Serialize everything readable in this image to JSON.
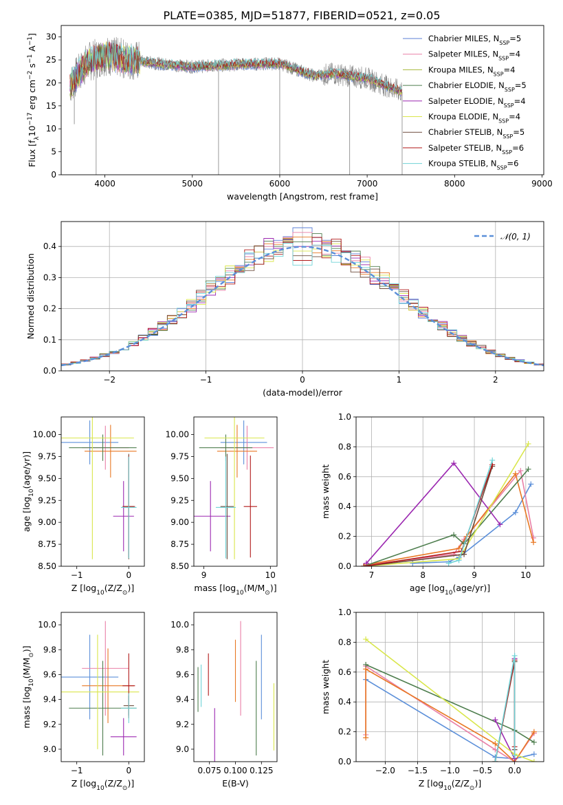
{
  "figure": {
    "title": "PLATE=0385, MJD=51877, FIBERID=0521, z=0.05"
  },
  "colors": {
    "Chabrier MILES": "#5b7fd6",
    "Salpeter MILES": "#e97fa6",
    "Kroupa MILES": "#a6b83a",
    "Chabrier ELODIE": "#4d7d4d",
    "Salpeter ELODIE": "#9b27b0",
    "Kroupa ELODIE": "#d9e64a",
    "Chabrier STELIB": "#6b4a3a",
    "Salpeter STELIB": "#b01818",
    "Kroupa STELIB": "#6fd3d6",
    "data": "#808080",
    "normal": "#5b8fd9",
    "panel_c": [
      "#5b8fd9",
      "#e97fa6",
      "#e87722",
      "#4d7d4d",
      "#9b27b0",
      "#d9e64a",
      "#6b4a3a",
      "#b01818",
      "#6fd3d6"
    ]
  },
  "chart_data": [
    {
      "id": "spectrum",
      "type": "line",
      "xlabel": "wavelength [Angstrom, rest frame]",
      "ylabel_html": "Flux [f<tspan baseline-shift='sub' font-size='9'>λ</tspan>10<tspan baseline-shift='super' font-size='9'>−17</tspan> erg cm<tspan baseline-shift='super' font-size='9'>−2</tspan> s<tspan baseline-shift='super' font-size='9'>−1</tspan> A<tspan baseline-shift='super' font-size='9'>−1</tspan>]",
      "xlim": [
        3500,
        9020
      ],
      "ylim": [
        0,
        32.5
      ],
      "xticks": [
        4000,
        5000,
        6000,
        7000,
        8000,
        9000
      ],
      "yticks": [
        0,
        5,
        10,
        15,
        20,
        25,
        30
      ],
      "grid": false,
      "legend_position": "right",
      "legend": [
        {
          "name": "Chabrier MILES",
          "sub": "SSP",
          "n": "5"
        },
        {
          "name": "Salpeter MILES",
          "sub": "SSP",
          "n": "4"
        },
        {
          "name": "Kroupa MILES",
          "sub": "SSP",
          "n": "4"
        },
        {
          "name": "Chabrier ELODIE",
          "sub": "SSP",
          "n": "5"
        },
        {
          "name": "Salpeter ELODIE",
          "sub": "SSP",
          "n": "4"
        },
        {
          "name": "Kroupa ELODIE",
          "sub": "SSP",
          "n": "4"
        },
        {
          "name": "Chabrier STELIB",
          "sub": "SSP",
          "n": "5"
        },
        {
          "name": "Salpeter STELIB",
          "sub": "SSP",
          "n": "6"
        },
        {
          "name": "Kroupa STELIB",
          "sub": "SSP",
          "n": "6"
        }
      ],
      "continuum": {
        "x": [
          3600,
          3800,
          4000,
          4300,
          4600,
          5000,
          5500,
          6000,
          6400,
          6600,
          7000,
          7400
        ],
        "y": [
          19.5,
          24.5,
          26.0,
          25.0,
          24.2,
          23.5,
          24.0,
          24.2,
          21.5,
          22.0,
          21.0,
          18.0
        ]
      },
      "spikes_down": [
        [
          3900,
          0
        ],
        [
          5300,
          0
        ],
        [
          6000,
          0
        ],
        [
          6800,
          0
        ],
        [
          7400,
          0
        ],
        [
          3650,
          11
        ]
      ],
      "model_extent": {
        "start": 3600,
        "end": 7400
      },
      "data_extent": {
        "start": 3600,
        "end": 7400
      }
    },
    {
      "id": "residuals",
      "type": "histogram",
      "xlabel": "(data-model)/error",
      "ylabel": "Normed distribution",
      "xlim": [
        -2.5,
        2.5
      ],
      "ylim": [
        0,
        0.48
      ],
      "xticks": [
        -2,
        -1,
        0,
        1,
        2
      ],
      "yticks": [
        0.0,
        0.1,
        0.2,
        0.3,
        0.4
      ],
      "grid": true,
      "legend_position": "top-right",
      "legend": [
        {
          "name": "𝒩(0, 1)"
        }
      ],
      "bin_width": 0.1,
      "peak_value": 0.46,
      "series_count": 9
    },
    {
      "id": "age_vs_Z",
      "type": "errorbar",
      "xlabel_html": "Z [log<tspan baseline-shift='sub' font-size='9'>10</tspan>(Z/Z<tspan baseline-shift='sub' font-size='9'>⊙</tspan>)]",
      "ylabel_html": "age  [log<tspan baseline-shift='sub' font-size='9'>10</tspan>(age/yr)]",
      "xlim": [
        -1.3,
        0.3
      ],
      "ylim": [
        8.5,
        10.2
      ],
      "xticks": [
        -1,
        0
      ],
      "yticks": [
        8.5,
        8.75,
        9.0,
        9.25,
        9.5,
        9.75,
        10.0
      ],
      "points": [
        {
          "x": -0.75,
          "xerr": 0.55,
          "y": 9.91,
          "yerr": 0.25,
          "c": 0
        },
        {
          "x": -0.45,
          "xerr": 0.45,
          "y": 9.85,
          "yerr": 0.25,
          "c": 1
        },
        {
          "x": -0.35,
          "xerr": 0.5,
          "y": 9.81,
          "yerr": 0.3,
          "c": 2
        },
        {
          "x": -0.5,
          "xerr": 0.65,
          "y": 9.85,
          "yerr": 0.15,
          "c": 3
        },
        {
          "x": -0.1,
          "xerr": 0.2,
          "y": 9.07,
          "yerr": 0.4,
          "c": 4
        },
        {
          "x": -0.7,
          "xerr": 0.8,
          "y": 9.96,
          "yerr": 1.38,
          "c": 5
        },
        {
          "x": 0.0,
          "xerr": 0.1,
          "y": 9.18,
          "yerr": 0.6,
          "c": 6
        },
        {
          "x": 0.0,
          "xerr": 0.12,
          "y": 9.18,
          "yerr": 0.58,
          "c": 7
        },
        {
          "x": 0.0,
          "xerr": 0.15,
          "y": 9.17,
          "yerr": 0.58,
          "c": 8
        }
      ]
    },
    {
      "id": "age_vs_mass",
      "type": "errorbar",
      "xlabel_html": "mass [log<tspan baseline-shift='sub' font-size='9'>10</tspan>(M/M<tspan baseline-shift='sub' font-size='9'>⊙</tspan>)]",
      "xlim": [
        8.85,
        10.1
      ],
      "ylim": [
        8.5,
        10.2
      ],
      "xticks": [
        9,
        10
      ],
      "yticks": [
        8.5,
        8.75,
        9.0,
        9.25,
        9.5,
        9.75,
        10.0
      ],
      "points": [
        {
          "x": 9.6,
          "xerr": 0.35,
          "y": 9.91,
          "yerr": 0.25,
          "c": 0
        },
        {
          "x": 9.65,
          "xerr": 0.4,
          "y": 9.85,
          "yerr": 0.25,
          "c": 1
        },
        {
          "x": 9.5,
          "xerr": 0.3,
          "y": 9.81,
          "yerr": 0.3,
          "c": 2
        },
        {
          "x": 9.33,
          "xerr": 0.4,
          "y": 9.85,
          "yerr": 0.15,
          "c": 3
        },
        {
          "x": 9.1,
          "xerr": 0.3,
          "y": 9.07,
          "yerr": 0.4,
          "c": 4
        },
        {
          "x": 9.46,
          "xerr": 0.45,
          "y": 9.96,
          "yerr": 1.38,
          "c": 5
        },
        {
          "x": 9.35,
          "xerr": 0.1,
          "y": 9.18,
          "yerr": 0.6,
          "c": 6
        },
        {
          "x": 9.7,
          "xerr": 0.1,
          "y": 9.18,
          "yerr": 0.58,
          "c": 7
        },
        {
          "x": 9.33,
          "xerr": 0.15,
          "y": 9.17,
          "yerr": 0.58,
          "c": 8
        }
      ]
    },
    {
      "id": "mass_weight_vs_age",
      "type": "line",
      "xlabel_html": "age  [log<tspan baseline-shift='sub' font-size='9'>10</tspan>(age/yr)]",
      "ylabel": "mass weight",
      "xlim": [
        6.7,
        10.35
      ],
      "ylim": [
        0,
        1.0
      ],
      "xticks": [
        7,
        8,
        9,
        10
      ],
      "yticks": [
        0.0,
        0.2,
        0.4,
        0.6,
        0.8,
        1.0
      ],
      "grid": true,
      "series": [
        {
          "c": 0,
          "x": [
            7.8,
            8.5,
            8.7,
            9.8,
            10.1
          ],
          "y": [
            0.02,
            0.03,
            0.06,
            0.36,
            0.55
          ]
        },
        {
          "c": 1,
          "x": [
            6.9,
            8.6,
            8.8,
            9.9,
            10.15
          ],
          "y": [
            0.01,
            0.08,
            0.18,
            0.64,
            0.19
          ]
        },
        {
          "c": 2,
          "x": [
            6.9,
            8.7,
            8.85,
            9.8,
            10.15
          ],
          "y": [
            0.01,
            0.12,
            0.2,
            0.62,
            0.16
          ]
        },
        {
          "c": 3,
          "x": [
            6.85,
            8.6,
            8.8,
            10.05
          ],
          "y": [
            0.0,
            0.21,
            0.15,
            0.65
          ]
        },
        {
          "c": 4,
          "x": [
            6.9,
            8.6,
            9.5
          ],
          "y": [
            0.02,
            0.69,
            0.28
          ]
        },
        {
          "c": 5,
          "x": [
            6.85,
            8.7,
            10.05
          ],
          "y": [
            0.0,
            0.05,
            0.82
          ]
        },
        {
          "c": 6,
          "x": [
            6.85,
            8.8,
            9.35
          ],
          "y": [
            0.0,
            0.08,
            0.67
          ]
        },
        {
          "c": 7,
          "x": [
            6.85,
            8.75,
            9.35
          ],
          "y": [
            0.0,
            0.1,
            0.68
          ]
        },
        {
          "c": 8,
          "x": [
            8.5,
            8.7,
            9.35
          ],
          "y": [
            0.02,
            0.04,
            0.71
          ]
        }
      ]
    },
    {
      "id": "mass_vs_Z",
      "type": "errorbar",
      "xlabel_html": "Z [log<tspan baseline-shift='sub' font-size='9'>10</tspan>(Z/Z<tspan baseline-shift='sub' font-size='9'>⊙</tspan>)]",
      "ylabel_html": "mass [log<tspan baseline-shift='sub' font-size='9'>10</tspan>(M/M<tspan baseline-shift='sub' font-size='9'>⊙</tspan>)]",
      "xlim": [
        -1.3,
        0.3
      ],
      "ylim": [
        8.9,
        10.1
      ],
      "xticks": [
        -1,
        0
      ],
      "yticks": [
        9.0,
        9.2,
        9.4,
        9.6,
        9.8,
        10.0
      ],
      "points": [
        {
          "x": -0.75,
          "xerr": 0.55,
          "y": 9.58,
          "yerr": 0.34,
          "c": 0
        },
        {
          "x": -0.45,
          "xerr": 0.45,
          "y": 9.65,
          "yerr": 0.38,
          "c": 1
        },
        {
          "x": -0.4,
          "xerr": 0.5,
          "y": 9.51,
          "yerr": 0.3,
          "c": 2
        },
        {
          "x": -0.5,
          "xerr": 0.65,
          "y": 9.33,
          "yerr": 0.38,
          "c": 3
        },
        {
          "x": -0.1,
          "xerr": 0.25,
          "y": 9.1,
          "yerr": 0.15,
          "c": 4
        },
        {
          "x": -0.6,
          "xerr": 0.8,
          "y": 9.46,
          "yerr": 0.46,
          "c": 5
        },
        {
          "x": 0.0,
          "xerr": 0.1,
          "y": 9.35,
          "yerr": 0.08,
          "c": 6
        },
        {
          "x": 0.0,
          "xerr": 0.12,
          "y": 9.51,
          "yerr": 0.26,
          "c": 7
        },
        {
          "x": 0.0,
          "xerr": 0.15,
          "y": 9.33,
          "yerr": 0.12,
          "c": 8
        }
      ]
    },
    {
      "id": "mass_vs_ebv",
      "type": "errorbar",
      "xlabel": "E(B-V)",
      "xlim": [
        0.06,
        0.14
      ],
      "ylim": [
        8.9,
        10.1
      ],
      "xticks": [
        0.075,
        0.1,
        0.125
      ],
      "xticklabels": [
        "0.075",
        "0.100",
        "0.125"
      ],
      "yticks": [
        9.0,
        9.2,
        9.4,
        9.6,
        9.8,
        10.0
      ],
      "points": [
        {
          "x": 0.125,
          "y": 9.58,
          "yerr": 0.34,
          "c": 0
        },
        {
          "x": 0.105,
          "y": 9.65,
          "yerr": 0.38,
          "c": 1
        },
        {
          "x": 0.1,
          "y": 9.63,
          "yerr": 0.25,
          "c": 2
        },
        {
          "x": 0.12,
          "y": 9.33,
          "yerr": 0.38,
          "c": 3
        },
        {
          "x": 0.08,
          "y": 9.1,
          "yerr": 0.23,
          "c": 4
        },
        {
          "x": 0.137,
          "y": 9.26,
          "yerr": 0.27,
          "c": 5
        },
        {
          "x": 0.064,
          "y": 9.48,
          "yerr": 0.18,
          "c": 3
        },
        {
          "x": 0.074,
          "y": 9.6,
          "yerr": 0.17,
          "c": 7
        },
        {
          "x": 0.067,
          "y": 9.51,
          "yerr": 0.17,
          "c": 8
        }
      ]
    },
    {
      "id": "mass_weight_vs_Z",
      "type": "line",
      "xlabel_html": "Z [log<tspan baseline-shift='sub' font-size='9'>10</tspan>(Z/Z<tspan baseline-shift='sub' font-size='9'>⊙</tspan>)]",
      "ylabel": "mass weight",
      "xlim": [
        -2.45,
        0.45
      ],
      "ylim": [
        0,
        1.0
      ],
      "xticks": [
        -2.0,
        -1.5,
        -1.0,
        -0.5,
        0.0
      ],
      "xticklabels": [
        "−2.0",
        "−1.5",
        "−1.0",
        "−0.5",
        "0.0"
      ],
      "yticks": [
        0.0,
        0.2,
        0.4,
        0.6,
        0.8,
        1.0
      ],
      "grid": true,
      "series": [
        {
          "c": 0,
          "x": [
            -2.3,
            -0.3,
            0.0,
            0.3
          ],
          "y": [
            0.55,
            0.03,
            0.02,
            0.05
          ]
        },
        {
          "c": 1,
          "x": [
            -2.3,
            -2.3,
            -0.3,
            0.0,
            0.3
          ],
          "y": [
            0.18,
            0.64,
            0.08,
            0.0,
            0.19
          ]
        },
        {
          "c": 2,
          "x": [
            -2.3,
            -2.3,
            -0.3,
            0.0,
            0.3
          ],
          "y": [
            0.16,
            0.62,
            0.12,
            0.0,
            0.2
          ]
        },
        {
          "c": 3,
          "x": [
            -2.3,
            0.0,
            0.3
          ],
          "y": [
            0.65,
            0.21,
            0.13
          ]
        },
        {
          "c": 4,
          "x": [
            -0.3,
            0.0,
            0.0
          ],
          "y": [
            0.28,
            0.02,
            0.69
          ]
        },
        {
          "c": 5,
          "x": [
            -2.3,
            0.0,
            0.3
          ],
          "y": [
            0.82,
            0.05,
            0.0
          ]
        },
        {
          "c": 6,
          "x": [
            -0.3,
            0.0,
            0.0
          ],
          "y": [
            0.0,
            0.67,
            0.08
          ]
        },
        {
          "c": 7,
          "x": [
            -0.3,
            0.0,
            0.0
          ],
          "y": [
            0.0,
            0.68,
            0.1
          ]
        },
        {
          "c": 8,
          "x": [
            -0.3,
            0.0,
            0.0
          ],
          "y": [
            0.0,
            0.71,
            0.04
          ]
        }
      ]
    }
  ]
}
